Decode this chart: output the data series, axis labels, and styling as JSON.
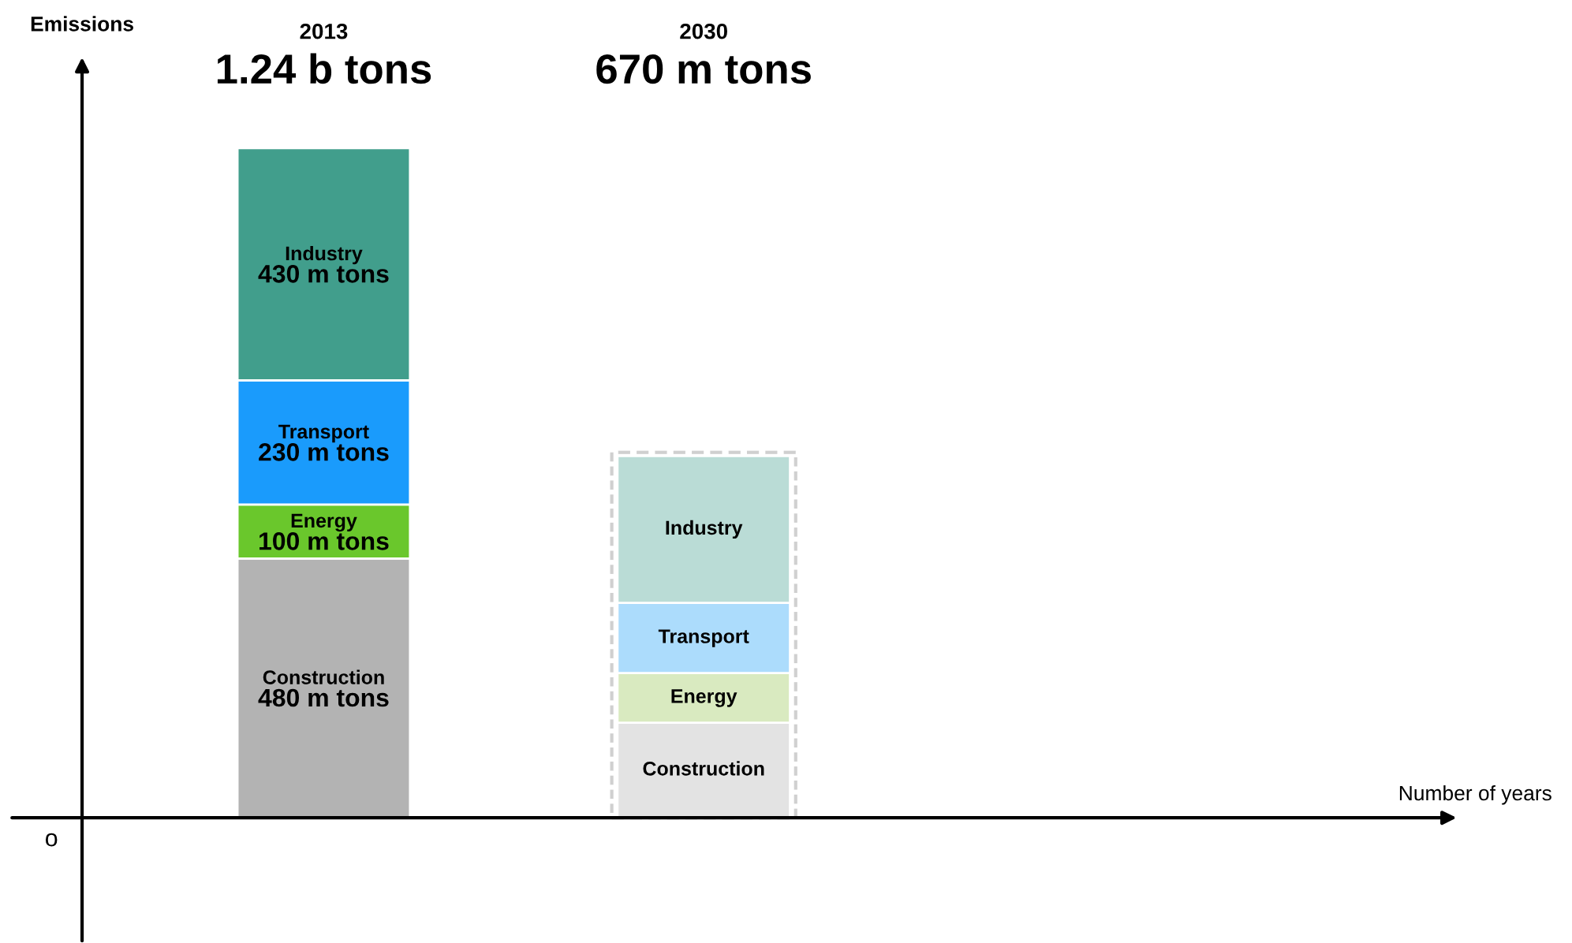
{
  "chart_data": {
    "type": "bar",
    "stacked": true,
    "ylabel": "Emissions",
    "categories": [
      "2013",
      "2030"
    ],
    "annotations": [
      "o",
      "Number of years",
      "1.24 b tons",
      "670 m tons"
    ],
    "series": [
      {
        "name": "Construction",
        "colors": [
          "#b3b3b3",
          "#e3e3e3"
        ],
        "values": [
          480,
          176
        ],
        "value_labels": [
          "480 m tons",
          null
        ]
      },
      {
        "name": "Energy",
        "colors": [
          "#6ac72c",
          "#d9eac0"
        ],
        "values": [
          100,
          92
        ],
        "value_labels": [
          "100 m tons",
          null
        ]
      },
      {
        "name": "Transport",
        "colors": [
          "#1a9bfc",
          "#acdcfc"
        ],
        "values": [
          230,
          130
        ],
        "value_labels": [
          "230 m tons",
          null
        ]
      },
      {
        "name": "Industry",
        "colors": [
          "#419e8c",
          "#badcd6"
        ],
        "values": [
          430,
          272
        ],
        "value_labels": [
          "430 m tons",
          null
        ]
      }
    ]
  }
}
